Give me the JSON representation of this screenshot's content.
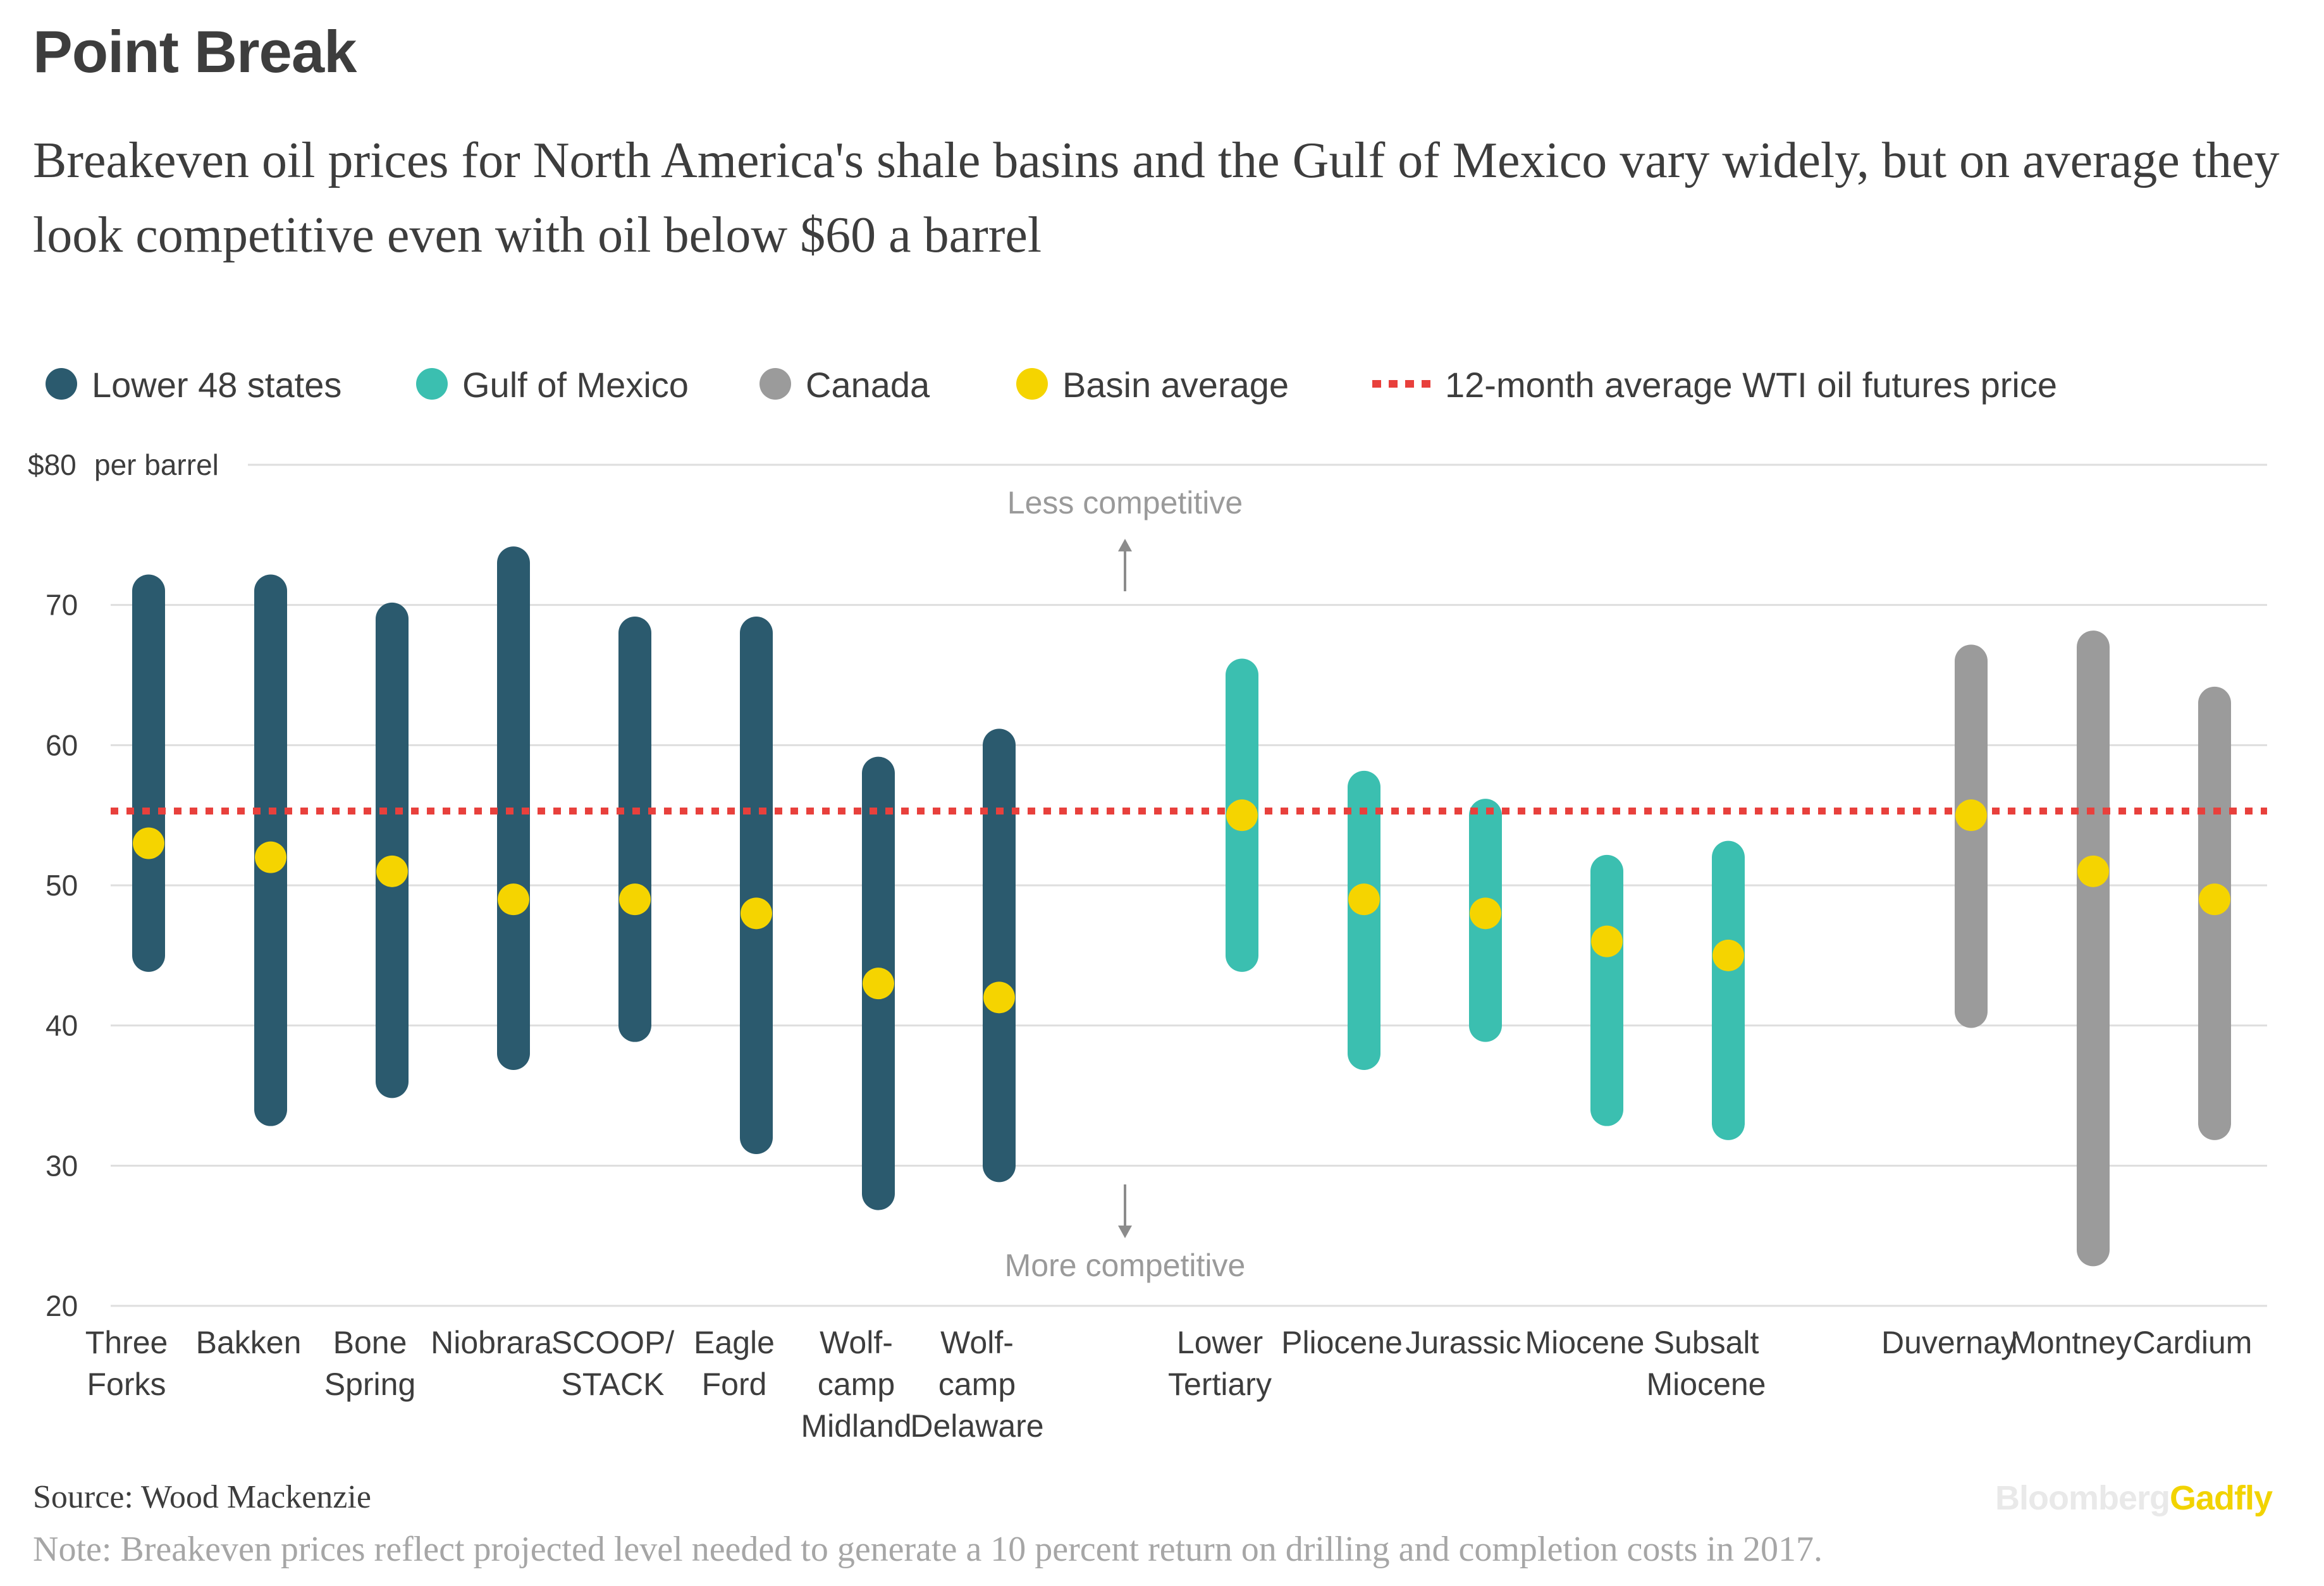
{
  "title": "Point Break",
  "subtitle": "Breakeven oil prices for North America's shale basins and the Gulf of Mexico vary widely, but on average they look competitive even with oil below $60 a barrel",
  "legend": [
    {
      "label": "Lower 48 states",
      "color": "#2b5a6e",
      "shape": "circle"
    },
    {
      "label": "Gulf of Mexico",
      "color": "#3bbfb0",
      "shape": "circle"
    },
    {
      "label": "Canada",
      "color": "#9b9b9b",
      "shape": "circle"
    },
    {
      "label": "Basin average",
      "color": "#f5d400",
      "shape": "circle"
    },
    {
      "label": "12-month average WTI oil futures price",
      "color": "#e8403c",
      "shape": "dotted-line"
    }
  ],
  "annotations": {
    "less_competitive": "Less competitive",
    "more_competitive": "More competitive"
  },
  "source": "Source: Wood Mackenzie",
  "note": "Note: Breakeven prices reflect projected level needed to generate a 10 percent return on drilling and completion costs in 2017.",
  "brand": {
    "part1": "Bloomberg",
    "part2": "Gadfly"
  },
  "chart_data": {
    "type": "range-dot",
    "y_axis": {
      "min": 20,
      "max": 80,
      "ticks": [
        20,
        30,
        40,
        50,
        60,
        70,
        80
      ],
      "tick_labels": [
        "20",
        "30",
        "40",
        "50",
        "60",
        "70",
        "$80"
      ],
      "unit_label": "per barrel",
      "grid": true
    },
    "reference_line": {
      "name": "12-month average WTI oil futures price",
      "value": 55.3,
      "color": "#e8403c"
    },
    "groups": [
      {
        "name": "Lower 48 states",
        "color": "#2b5a6e"
      },
      {
        "name": "Gulf of Mexico",
        "color": "#3bbfb0"
      },
      {
        "name": "Canada",
        "color": "#9b9b9b"
      }
    ],
    "basins": [
      {
        "label": [
          "Three",
          "Forks"
        ],
        "group": 0,
        "low": 45,
        "high": 71,
        "average": 53
      },
      {
        "label": [
          "Bakken"
        ],
        "group": 0,
        "low": 34,
        "high": 71,
        "average": 52
      },
      {
        "label": [
          "Bone",
          "Spring"
        ],
        "group": 0,
        "low": 36,
        "high": 69,
        "average": 51
      },
      {
        "label": [
          "Niobrara"
        ],
        "group": 0,
        "low": 38,
        "high": 73,
        "average": 49
      },
      {
        "label": [
          "SCOOP/",
          "STACK"
        ],
        "group": 0,
        "low": 40,
        "high": 68,
        "average": 49
      },
      {
        "label": [
          "Eagle",
          "Ford"
        ],
        "group": 0,
        "low": 32,
        "high": 68,
        "average": 48
      },
      {
        "label": [
          "Wolf-",
          "camp",
          "Midland"
        ],
        "group": 0,
        "low": 28,
        "high": 58,
        "average": 43
      },
      {
        "label": [
          "Wolf-",
          "camp",
          "Delaware"
        ],
        "group": 0,
        "low": 30,
        "high": 60,
        "average": 42
      },
      {
        "label": [
          "Lower",
          "Tertiary"
        ],
        "group": 1,
        "low": 45,
        "high": 65,
        "average": 55
      },
      {
        "label": [
          "Pliocene"
        ],
        "group": 1,
        "low": 38,
        "high": 57,
        "average": 49
      },
      {
        "label": [
          "Jurassic"
        ],
        "group": 1,
        "low": 40,
        "high": 55,
        "average": 48
      },
      {
        "label": [
          "Miocene"
        ],
        "group": 1,
        "low": 34,
        "high": 51,
        "average": 46
      },
      {
        "label": [
          "Subsalt",
          "Miocene"
        ],
        "group": 1,
        "low": 33,
        "high": 52,
        "average": 45
      },
      {
        "label": [
          "Duvernay"
        ],
        "group": 2,
        "low": 41,
        "high": 66,
        "average": 55
      },
      {
        "label": [
          "Montney"
        ],
        "group": 2,
        "low": 24,
        "high": 67,
        "average": 51
      },
      {
        "label": [
          "Cardium"
        ],
        "group": 2,
        "low": 33,
        "high": 63,
        "average": 49
      }
    ]
  }
}
